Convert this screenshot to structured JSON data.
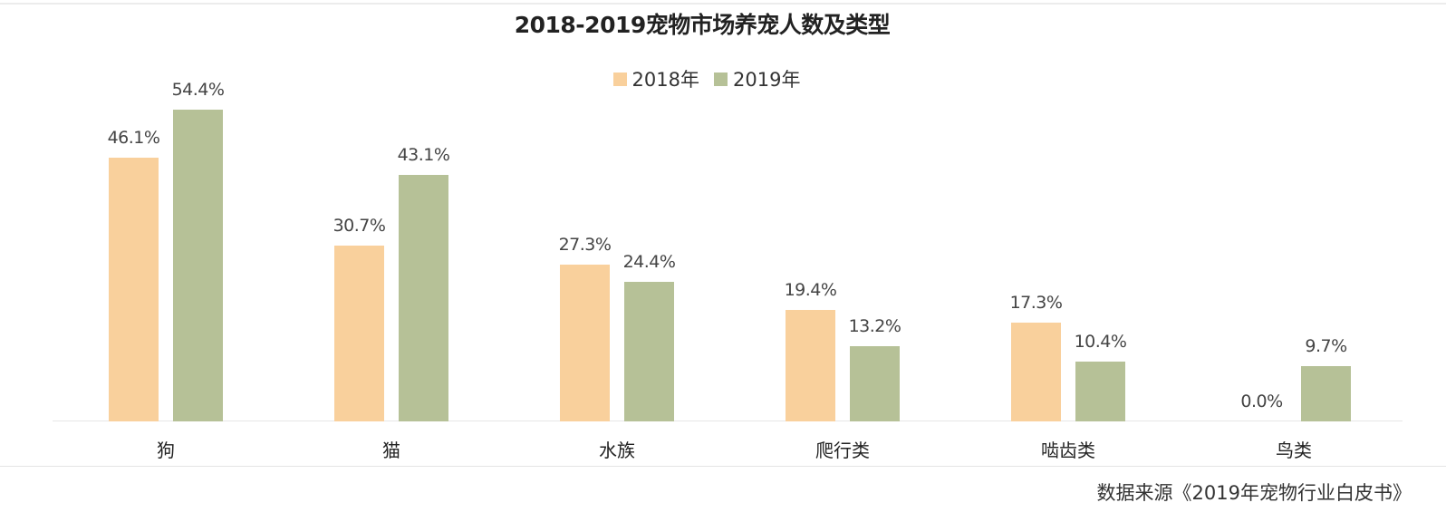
{
  "title": "2018-2019宠物市场养宠人数及类型",
  "legend": [
    {
      "label": "2018年",
      "color": "#f9d09c"
    },
    {
      "label": "2019年",
      "color": "#b6c197"
    }
  ],
  "source": "数据来源《2019年宠物行业白皮书》",
  "chart_data": {
    "type": "bar",
    "title": "2018-2019宠物市场养宠人数及类型",
    "xlabel": "",
    "ylabel": "",
    "categories": [
      "狗",
      "猫",
      "水族",
      "爬行类",
      "啮齿类",
      "鸟类"
    ],
    "series": [
      {
        "name": "2018年",
        "color": "#f9d09c",
        "values": [
          46.1,
          30.7,
          27.3,
          19.4,
          17.3,
          0.0
        ],
        "labels": [
          "46.1%",
          "30.7%",
          "27.3%",
          "19.4%",
          "17.3%",
          "0.0%"
        ]
      },
      {
        "name": "2019年",
        "color": "#b6c197",
        "values": [
          54.4,
          43.1,
          24.4,
          13.2,
          10.4,
          9.7
        ],
        "labels": [
          "54.4%",
          "43.1%",
          "24.4%",
          "13.2%",
          "10.4%",
          "9.7%"
        ]
      }
    ],
    "unit": "%",
    "ylim": [
      0,
      60
    ],
    "grid": false,
    "y_axis_visible": false,
    "legend_position": "top-center",
    "data_labels": true,
    "source": "数据来源《2019年宠物行业白皮书》"
  }
}
